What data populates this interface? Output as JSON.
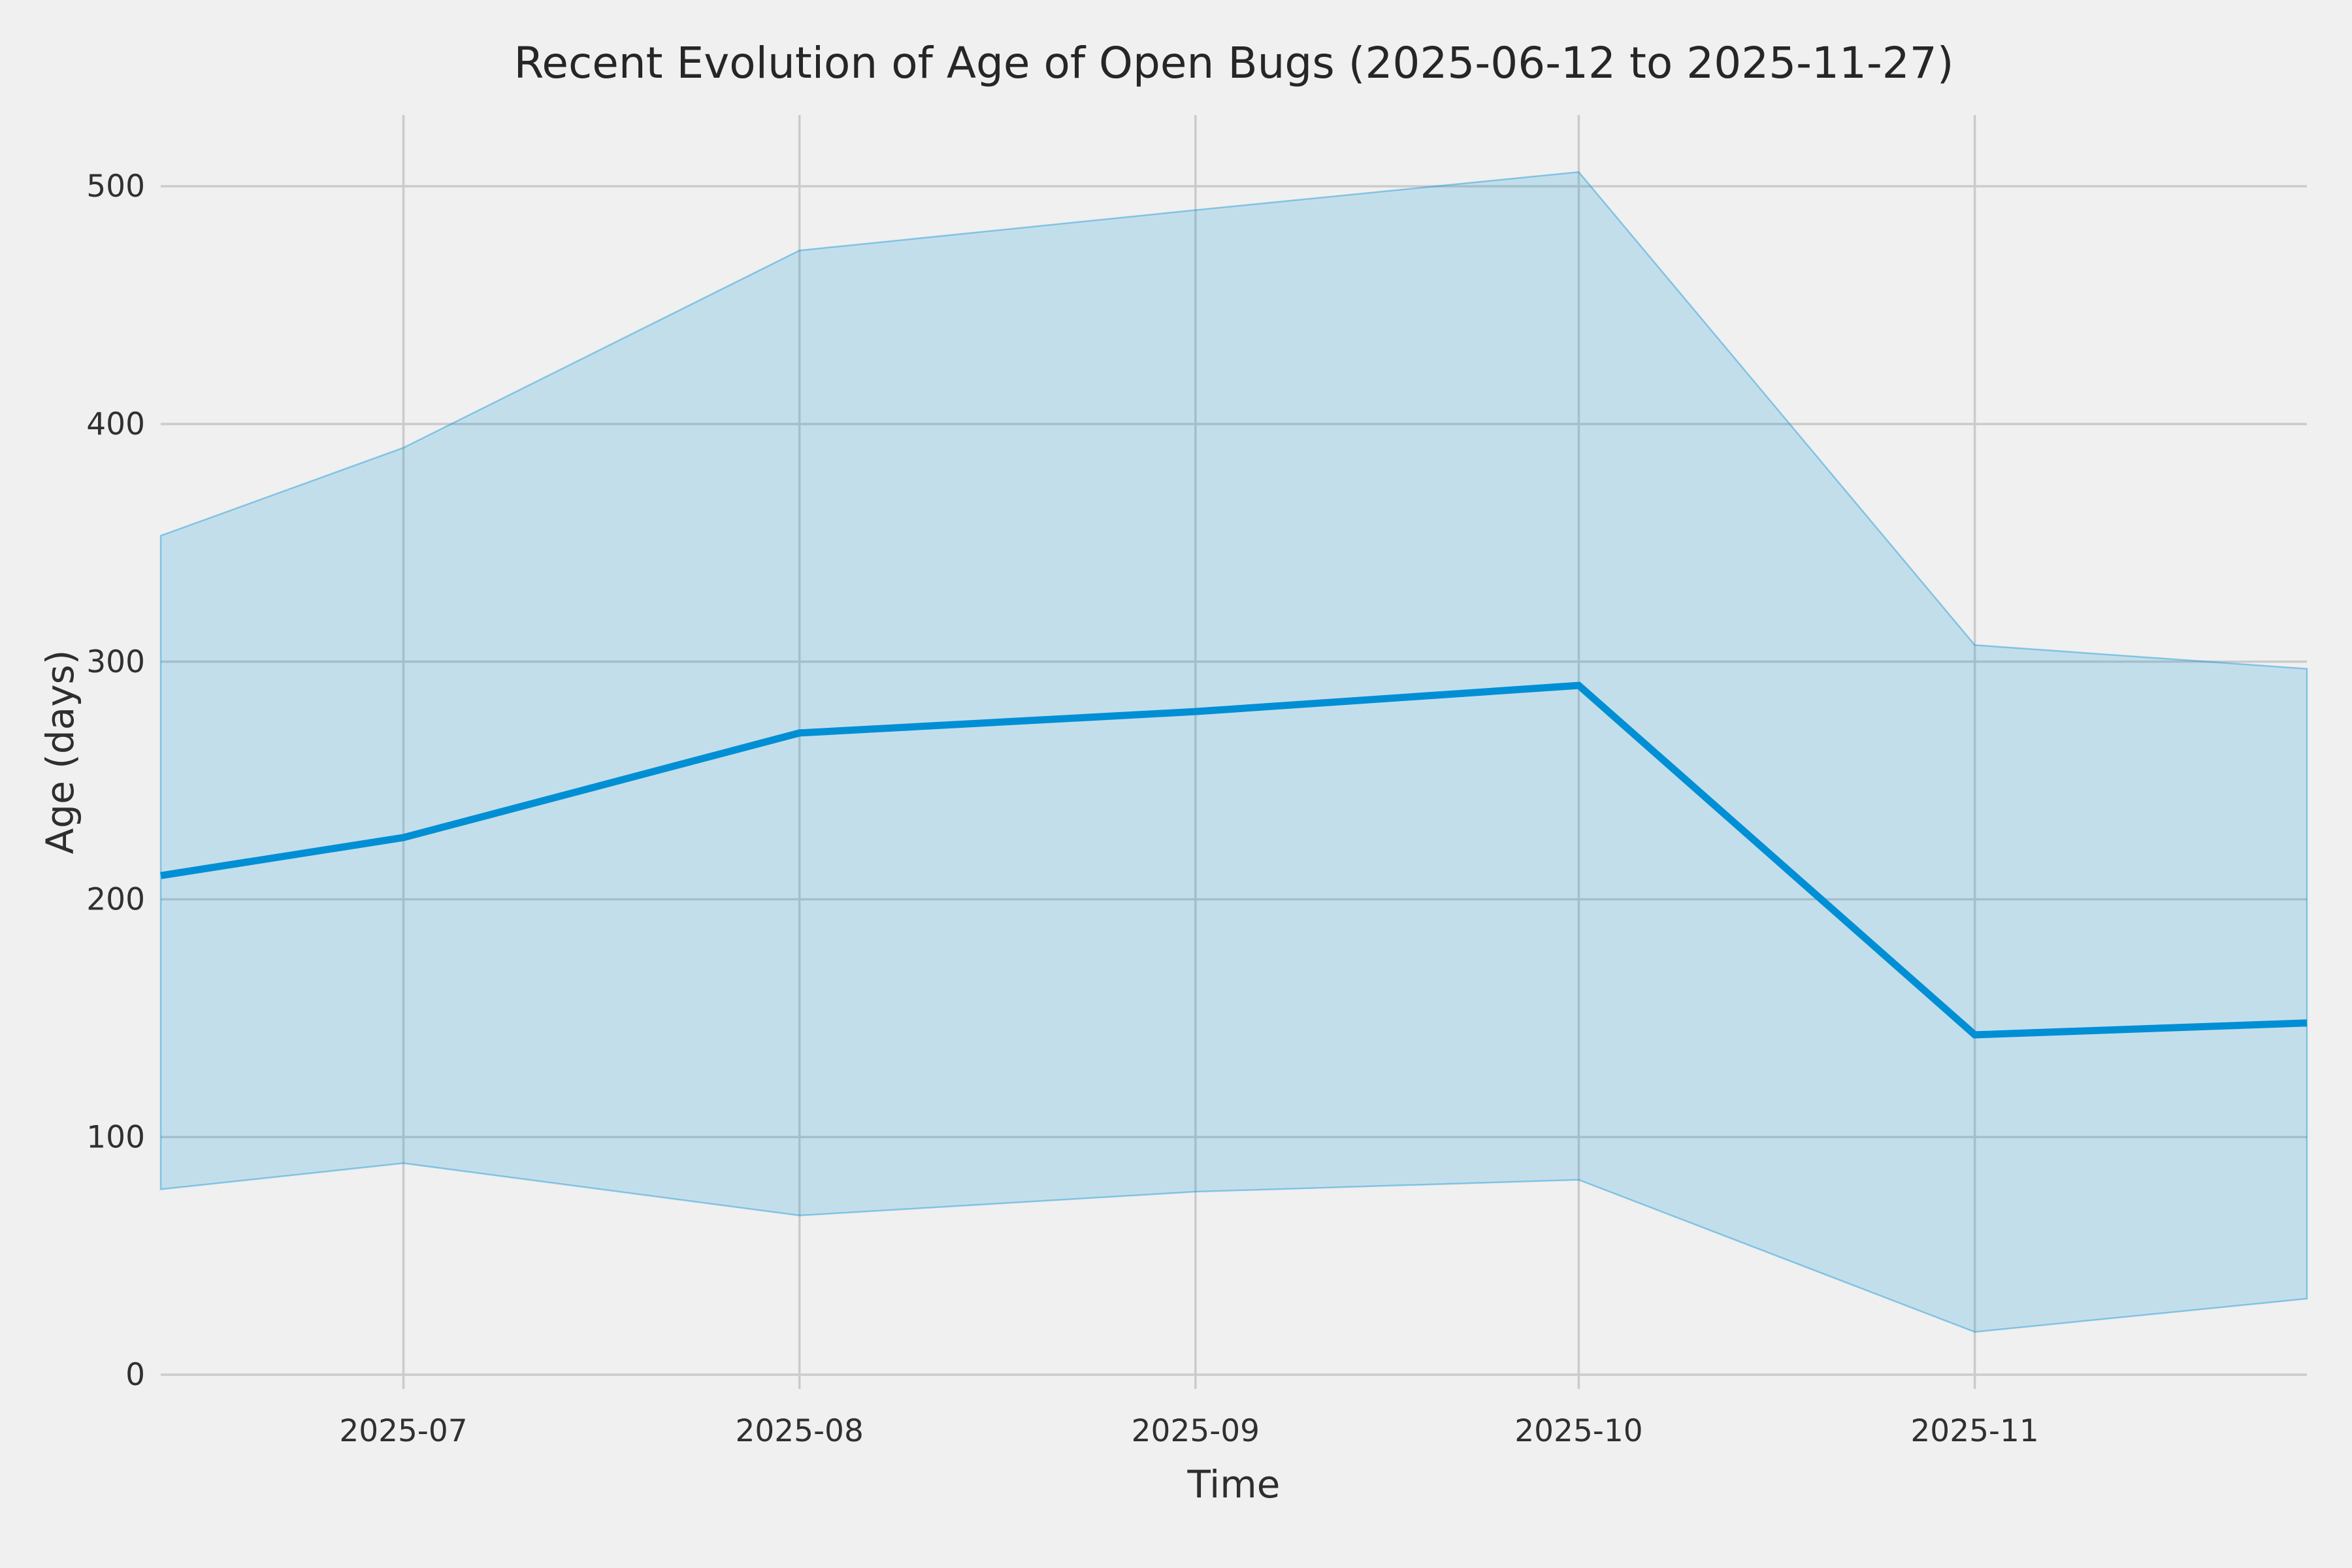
{
  "chart_data": {
    "type": "line",
    "title": "Recent Evolution of Age of Open Bugs (2025-06-12 to 2025-11-27)",
    "xlabel": "Time",
    "ylabel": "Age (days)",
    "x_dates": [
      "2025-06-12",
      "2025-07-01",
      "2025-08-01",
      "2025-09-01",
      "2025-10-01",
      "2025-11-01",
      "2025-11-27"
    ],
    "x_day_offsets": [
      0,
      19,
      50,
      81,
      111,
      142,
      168
    ],
    "series": [
      {
        "name": "median_age_days",
        "role": "line",
        "values": [
          210,
          226,
          270,
          279,
          290,
          143,
          148
        ]
      },
      {
        "name": "band_upper_days",
        "role": "band-upper",
        "values": [
          353,
          390,
          473,
          490,
          506,
          307,
          297
        ]
      },
      {
        "name": "band_lower_days",
        "role": "band-lower",
        "values": [
          78,
          89,
          67,
          77,
          82,
          18,
          32
        ]
      }
    ],
    "x_ticks": [
      {
        "label": "2025-07",
        "day": 19
      },
      {
        "label": "2025-08",
        "day": 50
      },
      {
        "label": "2025-09",
        "day": 81
      },
      {
        "label": "2025-10",
        "day": 111
      },
      {
        "label": "2025-11",
        "day": 142
      }
    ],
    "y_ticks": [
      0,
      100,
      200,
      300,
      400,
      500
    ],
    "xlim_days": [
      0,
      168
    ],
    "ylim": [
      -6,
      530
    ],
    "grid": true,
    "legend_position": "none",
    "colors": {
      "background": "#f0f0f0",
      "grid": "#cbcbcb",
      "line": "#008fd5",
      "band_fill_alpha": "0.19",
      "band_edge_alpha": "0.40",
      "text": "#303030",
      "title_text": "#262626"
    }
  }
}
